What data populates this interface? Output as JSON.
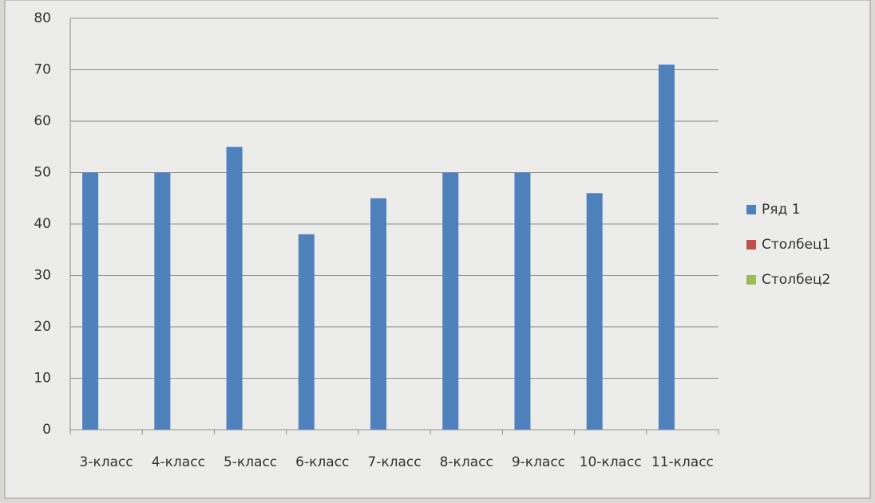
{
  "chart_data": {
    "type": "bar",
    "categories": [
      "3-класс",
      "4-класс",
      "5-класс",
      "6-класс",
      "7-класс",
      "8-класс",
      "9-класс",
      "10-класс",
      "11-класс"
    ],
    "series": [
      {
        "name": "Ряд 1",
        "color": "#4f81bd",
        "values": [
          50,
          50,
          55,
          38,
          45,
          50,
          50,
          46,
          71
        ]
      },
      {
        "name": "Столбец1",
        "color": "#c0504d",
        "values": [
          null,
          null,
          null,
          null,
          null,
          null,
          null,
          null,
          null
        ]
      },
      {
        "name": "Столбец2",
        "color": "#9bbb59",
        "values": [
          null,
          null,
          null,
          null,
          null,
          null,
          null,
          null,
          null
        ]
      }
    ],
    "ylim": [
      0,
      80
    ],
    "yticks": [
      0,
      10,
      20,
      30,
      40,
      50,
      60,
      70,
      80
    ],
    "grid": true,
    "legend": "right"
  }
}
